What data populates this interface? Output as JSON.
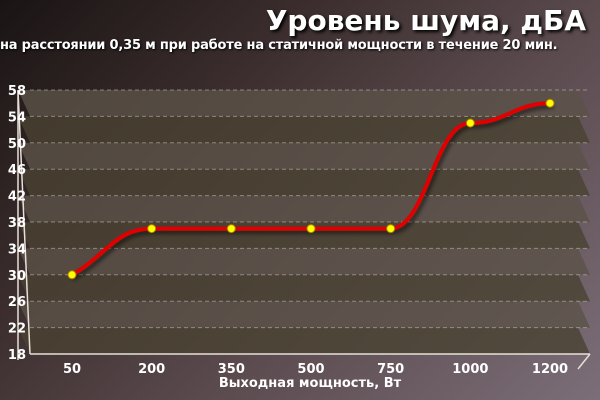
{
  "chart_data": {
    "type": "line",
    "title": "Уровень шума, дБА",
    "subtitle": "на расстоянии 0,35 м при работе на статичной мощности в течение 20 мин.",
    "xlabel": "Выходная мощность, Вт",
    "ylabel": "",
    "categories": [
      "50",
      "200",
      "350",
      "500",
      "750",
      "1000",
      "1200"
    ],
    "values": [
      30,
      37,
      37,
      37,
      37,
      53,
      56
    ],
    "ylim": [
      18,
      58
    ],
    "yticks": [
      18,
      22,
      26,
      30,
      34,
      38,
      42,
      46,
      50,
      54,
      58
    ],
    "grid": true,
    "line_color": "#e00000",
    "marker_color": "#ffff00",
    "band_colors": [
      "#4a4232",
      "#5b5348"
    ]
  }
}
